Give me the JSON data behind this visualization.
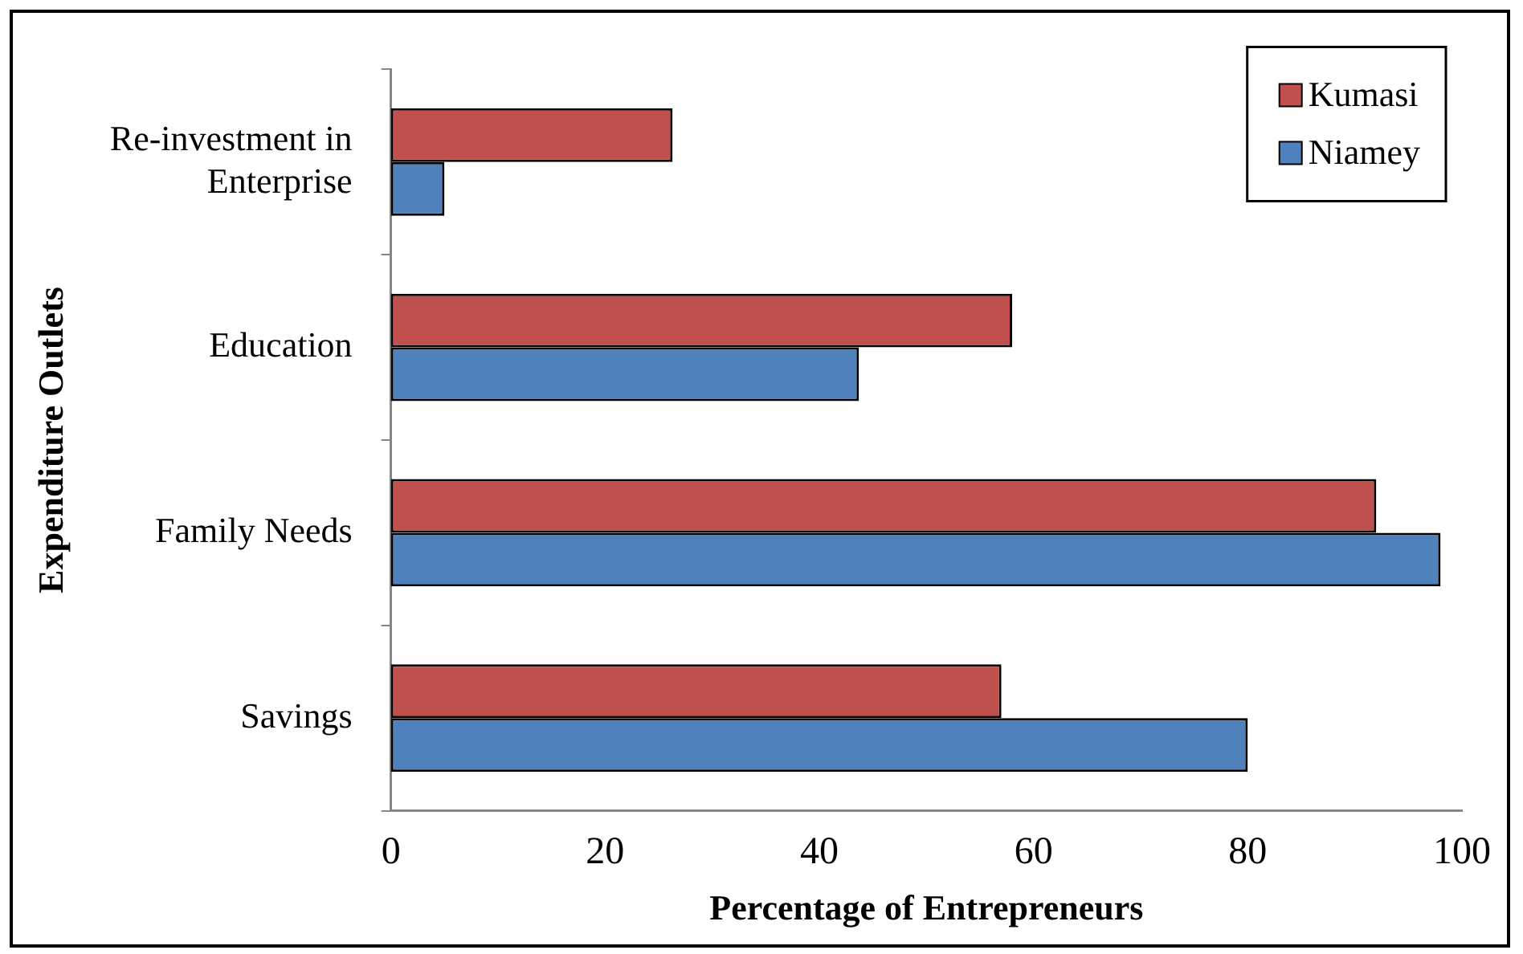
{
  "chart_data": {
    "type": "bar",
    "orientation": "horizontal",
    "xlabel": "Percentage of Entrepreneurs",
    "ylabel": "Expenditure Outlets",
    "categories": [
      "Re-investment in Enterprise",
      "Education",
      "Family Needs",
      "Savings"
    ],
    "series": [
      {
        "name": "Kumasi",
        "color": "#c0504d",
        "values": [
          26.3,
          58,
          92,
          57
        ]
      },
      {
        "name": "Niamey",
        "color": "#4f81bd",
        "values": [
          5,
          43.7,
          98,
          80
        ]
      }
    ],
    "xlim": [
      0,
      100
    ],
    "xticks": [
      0,
      20,
      40,
      60,
      80,
      100
    ],
    "legend": "top right",
    "grid": false
  }
}
